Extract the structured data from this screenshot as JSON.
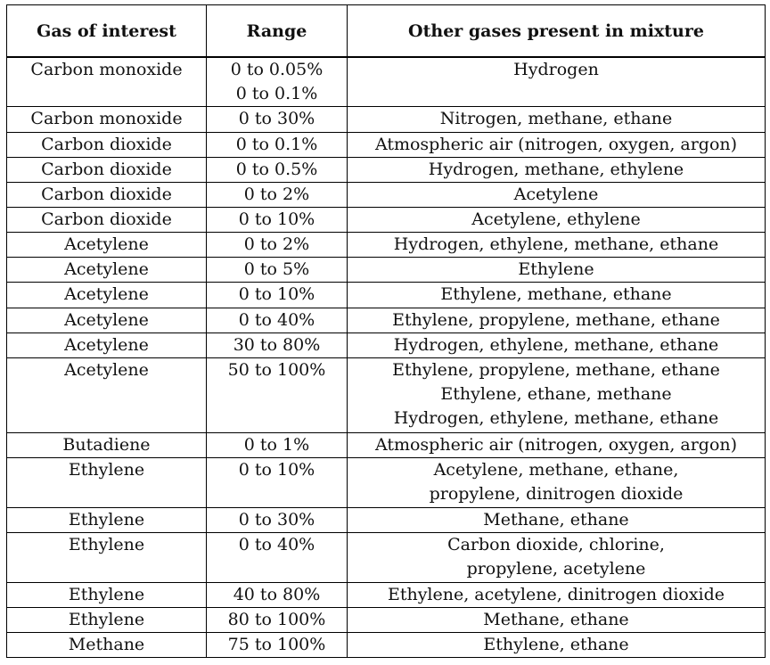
{
  "table": {
    "headers": [
      "Gas of interest",
      "Range",
      "Other gases present in mixture"
    ],
    "rows": [
      {
        "gas": [
          "Carbon monoxide"
        ],
        "range": [
          "0 to 0.05%",
          "0 to 0.1%"
        ],
        "other": [
          "Hydrogen"
        ]
      },
      {
        "gas": [
          "Carbon monoxide"
        ],
        "range": [
          "0 to 30%"
        ],
        "other": [
          "Nitrogen, methane, ethane"
        ]
      },
      {
        "gas": [
          "Carbon dioxide"
        ],
        "range": [
          "0 to 0.1%"
        ],
        "other": [
          "Atmospheric air (nitrogen, oxygen, argon)"
        ]
      },
      {
        "gas": [
          "Carbon dioxide"
        ],
        "range": [
          "0 to 0.5%"
        ],
        "other": [
          "Hydrogen, methane, ethylene"
        ]
      },
      {
        "gas": [
          "Carbon dioxide"
        ],
        "range": [
          "0 to 2%"
        ],
        "other": [
          "Acetylene"
        ]
      },
      {
        "gas": [
          "Carbon dioxide"
        ],
        "range": [
          "0 to 10%"
        ],
        "other": [
          "Acetylene, ethylene"
        ]
      },
      {
        "gas": [
          "Acetylene"
        ],
        "range": [
          "0 to 2%"
        ],
        "other": [
          "Hydrogen, ethylene, methane, ethane"
        ]
      },
      {
        "gas": [
          "Acetylene"
        ],
        "range": [
          "0 to 5%"
        ],
        "other": [
          "Ethylene"
        ]
      },
      {
        "gas": [
          "Acetylene"
        ],
        "range": [
          "0 to 10%"
        ],
        "other": [
          "Ethylene, methane, ethane"
        ]
      },
      {
        "gas": [
          "Acetylene"
        ],
        "range": [
          "0 to 40%"
        ],
        "other": [
          "Ethylene, propylene, methane, ethane"
        ]
      },
      {
        "gas": [
          "Acetylene"
        ],
        "range": [
          "30 to 80%"
        ],
        "other": [
          "Hydrogen, ethylene, methane, ethane"
        ]
      },
      {
        "gas": [
          "Acetylene"
        ],
        "range": [
          "50 to 100%"
        ],
        "other": [
          "Ethylene, propylene, methane, ethane",
          "Ethylene, ethane, methane",
          "Hydrogen, ethylene, methane, ethane"
        ]
      },
      {
        "gas": [
          "Butadiene"
        ],
        "range": [
          "0 to 1%"
        ],
        "other": [
          "Atmospheric air (nitrogen, oxygen, argon)"
        ]
      },
      {
        "gas": [
          "Ethylene"
        ],
        "range": [
          "0 to 10%"
        ],
        "other": [
          "Acetylene, methane, ethane,",
          "propylene, dinitrogen dioxide"
        ]
      },
      {
        "gas": [
          "Ethylene"
        ],
        "range": [
          "0 to 30%"
        ],
        "other": [
          "Methane, ethane"
        ]
      },
      {
        "gas": [
          "Ethylene"
        ],
        "range": [
          "0 to 40%"
        ],
        "other": [
          "Carbon dioxide, chlorine,",
          "propylene, acetylene"
        ]
      },
      {
        "gas": [
          "Ethylene"
        ],
        "range": [
          "40 to 80%"
        ],
        "other": [
          "Ethylene, acetylene, dinitrogen dioxide"
        ]
      },
      {
        "gas": [
          "Ethylene"
        ],
        "range": [
          "80 to 100%"
        ],
        "other": [
          "Methane, ethane"
        ]
      },
      {
        "gas": [
          "Methane"
        ],
        "range": [
          "75 to 100%"
        ],
        "other": [
          "Ethylene, ethane"
        ]
      }
    ]
  }
}
